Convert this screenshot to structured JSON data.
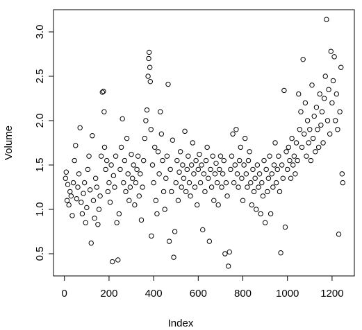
{
  "chart_data": {
    "type": "scatter",
    "xlabel": "Index",
    "ylabel": "Volume",
    "x": [
      5,
      8,
      12,
      15,
      20,
      25,
      30,
      35,
      40,
      45,
      50,
      55,
      60,
      65,
      70,
      75,
      80,
      85,
      90,
      95,
      100,
      105,
      110,
      115,
      120,
      125,
      130,
      135,
      140,
      145,
      150,
      155,
      160,
      165,
      170,
      175,
      178,
      180,
      185,
      190,
      195,
      200,
      205,
      210,
      215,
      220,
      225,
      230,
      235,
      240,
      245,
      250,
      255,
      260,
      265,
      270,
      275,
      280,
      285,
      290,
      295,
      300,
      305,
      310,
      315,
      320,
      325,
      330,
      335,
      340,
      345,
      350,
      355,
      360,
      365,
      370,
      375,
      378,
      380,
      383,
      385,
      388,
      390,
      395,
      400,
      405,
      410,
      415,
      420,
      425,
      430,
      435,
      440,
      445,
      450,
      455,
      460,
      465,
      470,
      475,
      480,
      485,
      490,
      495,
      500,
      505,
      510,
      515,
      520,
      525,
      530,
      535,
      540,
      545,
      550,
      555,
      560,
      565,
      570,
      575,
      580,
      585,
      590,
      595,
      600,
      605,
      610,
      615,
      620,
      625,
      630,
      635,
      640,
      645,
      650,
      655,
      660,
      665,
      670,
      675,
      680,
      685,
      690,
      695,
      700,
      705,
      710,
      715,
      720,
      725,
      730,
      735,
      740,
      745,
      750,
      755,
      760,
      765,
      770,
      775,
      780,
      785,
      790,
      795,
      800,
      805,
      810,
      815,
      820,
      825,
      830,
      835,
      840,
      845,
      850,
      855,
      860,
      865,
      870,
      875,
      880,
      885,
      890,
      895,
      900,
      905,
      910,
      915,
      920,
      925,
      930,
      935,
      940,
      945,
      950,
      955,
      960,
      965,
      970,
      975,
      980,
      985,
      990,
      995,
      1000,
      1005,
      1010,
      1015,
      1020,
      1025,
      1030,
      1035,
      1040,
      1045,
      1050,
      1055,
      1060,
      1065,
      1070,
      1075,
      1080,
      1085,
      1090,
      1095,
      1100,
      1105,
      1110,
      1115,
      1120,
      1125,
      1130,
      1135,
      1140,
      1145,
      1150,
      1155,
      1160,
      1165,
      1170,
      1175,
      1180,
      1185,
      1190,
      1195,
      1200,
      1205,
      1210,
      1215,
      1220,
      1225,
      1230,
      1235,
      1240,
      1245,
      1248
    ],
    "y": [
      1.35,
      1.42,
      1.1,
      1.28,
      1.05,
      1.2,
      1.15,
      0.93,
      1.3,
      1.55,
      1.72,
      1.12,
      1.25,
      1.4,
      1.92,
      1.08,
      0.95,
      1.18,
      1.3,
      0.85,
      1.02,
      1.45,
      1.6,
      1.22,
      0.62,
      1.83,
      1.1,
      0.9,
      1.35,
      1.25,
      0.83,
      1.0,
      1.15,
      1.6,
      2.32,
      2.33,
      2.1,
      1.7,
      1.45,
      1.55,
      1.2,
      1.3,
      1.08,
      1.5,
      0.41,
      1.38,
      1.25,
      1.6,
      0.85,
      0.43,
      0.95,
      1.45,
      1.7,
      2.02,
      1.3,
      1.55,
      1.2,
      1.8,
      1.4,
      1.1,
      1.25,
      1.62,
      1.35,
      1.5,
      1.05,
      1.3,
      1.45,
      1.6,
      1.15,
      1.4,
      0.88,
      1.25,
      1.55,
      1.8,
      2.0,
      2.12,
      2.5,
      2.7,
      2.77,
      2.6,
      2.44,
      1.9,
      0.7,
      1.5,
      1.3,
      1.7,
      1.1,
      0.95,
      1.65,
      1.4,
      2.1,
      1.85,
      1.55,
      1.2,
      1.0,
      1.35,
      1.6,
      2.41,
      0.64,
      1.45,
      1.2,
      1.78,
      0.46,
      0.75,
      1.3,
      1.55,
      1.1,
      1.42,
      1.65,
      1.25,
      1.5,
      1.35,
      1.88,
      1.2,
      1.45,
      1.6,
      1.3,
      1.15,
      1.5,
      1.75,
      1.4,
      1.25,
      1.55,
      1.05,
      1.45,
      1.62,
      1.3,
      1.5,
      0.77,
      1.4,
      1.2,
      1.55,
      1.7,
      1.35,
      0.64,
      1.45,
      1.25,
      1.6,
      1.1,
      1.4,
      1.52,
      1.3,
      1.05,
      1.45,
      1.6,
      1.25,
      1.4,
      1.55,
      0.5,
      1.3,
      1.15,
      0.36,
      0.52,
      1.45,
      1.6,
      1.85,
      1.3,
      1.5,
      1.9,
      1.4,
      1.25,
      1.55,
      1.7,
      1.35,
      1.1,
      1.5,
      1.8,
      1.4,
      1.25,
      1.55,
      1.65,
      1.3,
      1.05,
      1.45,
      1.2,
      1.35,
      1.0,
      1.5,
      1.25,
      1.4,
      0.95,
      1.3,
      1.15,
      1.55,
      0.85,
      1.45,
      1.2,
      1.35,
      1.6,
      0.95,
      1.4,
      1.25,
      1.5,
      1.75,
      1.3,
      1.45,
      1.6,
      1.2,
      0.51,
      1.5,
      1.35,
      2.34,
      0.8,
      1.65,
      1.45,
      1.7,
      1.55,
      1.35,
      1.8,
      1.5,
      1.6,
      1.4,
      1.75,
      1.55,
      2.3,
      1.9,
      2.1,
      1.7,
      2.69,
      1.85,
      2.2,
      1.6,
      2.0,
      1.75,
      1.9,
      1.55,
      2.4,
      1.8,
      2.05,
      1.65,
      2.15,
      1.9,
      1.7,
      2.3,
      1.95,
      2.1,
      1.75,
      2.25,
      2.5,
      3.14,
      2.0,
      2.35,
      1.85,
      2.78,
      2.2,
      2.45,
      2.72,
      2.0,
      2.3,
      1.9,
      0.72,
      2.1,
      2.6,
      1.4,
      1.3
    ],
    "color": "#000000",
    "xlim": [
      -49,
      1300
    ],
    "xticks": [
      0,
      200,
      400,
      600,
      800,
      1000,
      1200
    ],
    "ylim": [
      0.25,
      3.25
    ],
    "yticks": [
      0.5,
      {
        "value": 1,
        "label": "1.0"
      },
      1.5,
      {
        "value": 2,
        "label": "2.0"
      },
      2.5,
      {
        "value": 3,
        "label": "3.0"
      }
    ]
  }
}
